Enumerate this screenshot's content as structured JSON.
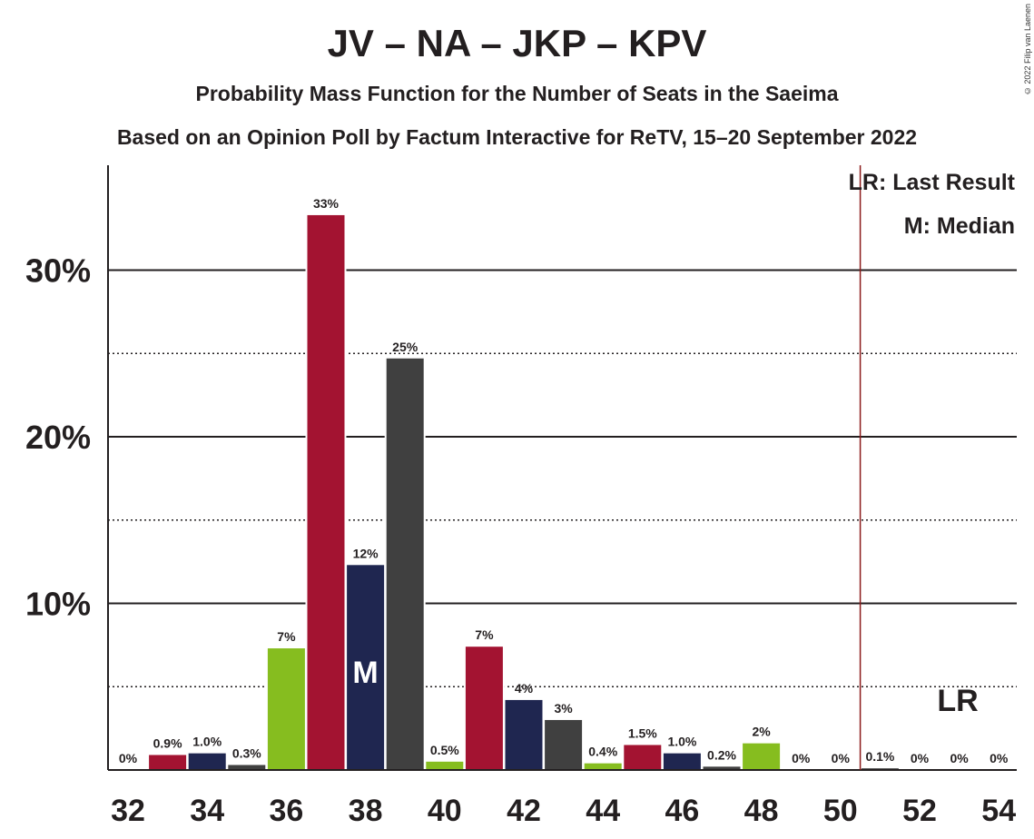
{
  "title": "JV – NA – JKP – KPV",
  "subtitle": "Probability Mass Function for the Number of Seats in the Saeima",
  "subtitle2": "Based on an Opinion Poll by Factum Interactive for ReTV, 15–20 September 2022",
  "copyright": "© 2022 Filip van Laenen",
  "legend": {
    "lr": "LR: Last Result",
    "m": "M: Median"
  },
  "colors": {
    "red": "#a31331",
    "navy": "#1f2650",
    "dark": "#404040",
    "green": "#86bd1f",
    "lr_line": "#8b1a1a"
  },
  "chart_data": {
    "type": "bar",
    "categories": [
      32,
      33,
      34,
      35,
      36,
      37,
      38,
      39,
      40,
      41,
      42,
      43,
      44,
      45,
      46,
      47,
      48,
      49,
      50,
      51,
      52,
      53,
      54
    ],
    "values": [
      0,
      0.9,
      1.0,
      0.3,
      7.3,
      33.3,
      12.3,
      24.7,
      0.5,
      7.4,
      4.2,
      3.0,
      0.4,
      1.5,
      1.0,
      0.2,
      1.6,
      0,
      0,
      0.1,
      0,
      0,
      0
    ],
    "labels": [
      "0%",
      "0.9%",
      "1.0%",
      "0.3%",
      "7%",
      "33%",
      "12%",
      "25%",
      "0.5%",
      "7%",
      "4%",
      "3%",
      "0.4%",
      "1.5%",
      "1.0%",
      "0.2%",
      "2%",
      "0%",
      "0%",
      "0.1%",
      "0%",
      "0%",
      "0%"
    ],
    "bar_colors": [
      "red",
      "red",
      "navy",
      "dark",
      "green",
      "red",
      "navy",
      "dark",
      "green",
      "red",
      "navy",
      "dark",
      "green",
      "red",
      "navy",
      "dark",
      "green",
      "red",
      "navy",
      "dark",
      "green",
      "red",
      "navy"
    ],
    "x_ticks": [
      "32",
      "34",
      "36",
      "38",
      "40",
      "42",
      "44",
      "46",
      "48",
      "50",
      "52",
      "54"
    ],
    "y_ticks": [
      "10%",
      "20%",
      "30%"
    ],
    "ylim": [
      0,
      36
    ],
    "median": 38,
    "median_label": "M",
    "last_result": 50.5,
    "last_result_label": "LR",
    "grid": true
  }
}
